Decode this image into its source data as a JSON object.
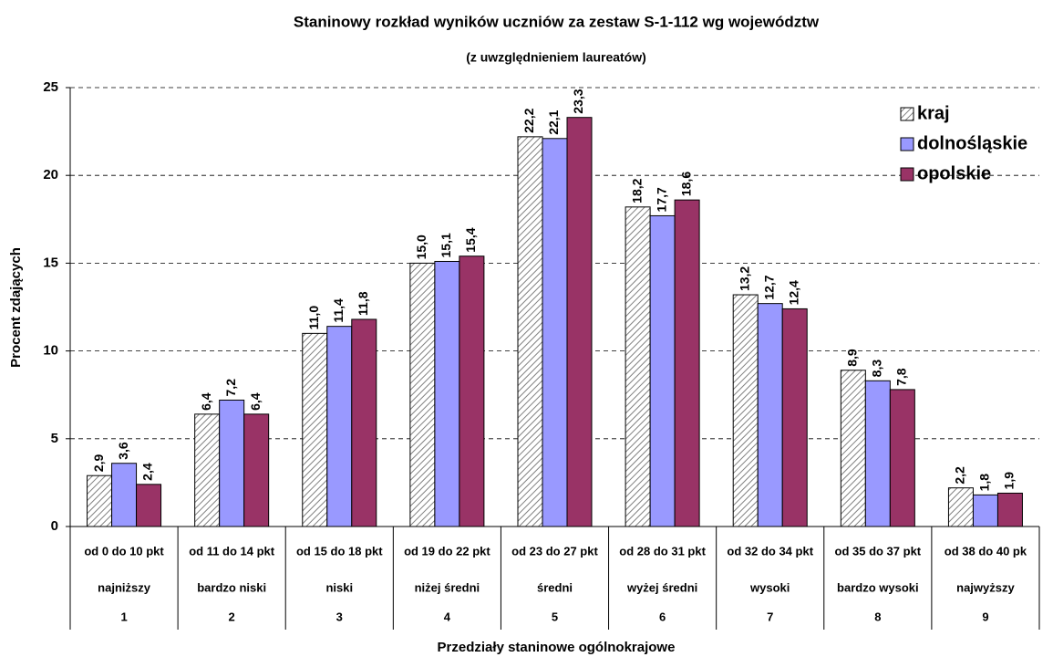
{
  "chart_data": {
    "type": "bar",
    "title": "Staninowy rozkład wyników uczniów za zestaw S-1-112 wg województw",
    "subtitle": "(z uwzględnieniem laureatów)",
    "x_label": "Przedziały staninowe ogólnokrajowe",
    "y_label": "Procent zdających",
    "categories": [
      "od 0 do 10 pkt",
      "od 11 do 14 pkt",
      "od 15 do 18 pkt",
      "od 19 do 22 pkt",
      "od 23 do 27 pkt",
      "od 28 do 31 pkt",
      "od 32 do 34 pkt",
      "od 35 do 37 pkt",
      "od 38 do 40 pk"
    ],
    "category_names": [
      "najniższy",
      "bardzo niski",
      "niski",
      "niżej średni",
      "średni",
      "wyżej średni",
      "wysoki",
      "bardzo wysoki",
      "najwyższy"
    ],
    "category_numbers": [
      "1",
      "2",
      "3",
      "4",
      "5",
      "6",
      "7",
      "8",
      "9"
    ],
    "series": [
      {
        "name": "kraj",
        "color": "#808080",
        "pattern": "diagonal-hatch",
        "values": [
          2.9,
          6.4,
          11.0,
          15.0,
          22.2,
          18.2,
          13.2,
          8.9,
          2.2
        ],
        "value_labels": [
          "2,9",
          "6,4",
          "11,0",
          "15,0",
          "22,2",
          "18,2",
          "13,2",
          "8,9",
          "2,2"
        ]
      },
      {
        "name": "dolnośląskie",
        "color": "#9999ff",
        "values": [
          3.6,
          7.2,
          11.4,
          15.1,
          22.1,
          17.7,
          12.7,
          8.3,
          1.8
        ],
        "value_labels": [
          "3,6",
          "7,2",
          "11,4",
          "15,1",
          "22,1",
          "17,7",
          "12,7",
          "8,3",
          "1,8"
        ]
      },
      {
        "name": "opolskie",
        "color": "#993366",
        "values": [
          2.4,
          6.4,
          11.8,
          15.4,
          23.3,
          18.6,
          12.4,
          7.8,
          1.9
        ],
        "value_labels": [
          "2,4",
          "6,4",
          "11,8",
          "15,4",
          "23,3",
          "18,6",
          "12,4",
          "7,8",
          "1,9"
        ]
      }
    ],
    "ylim": [
      0,
      25
    ],
    "yticks": [
      0,
      5,
      10,
      15,
      20,
      25
    ],
    "grid": true,
    "legend": "top-right"
  }
}
